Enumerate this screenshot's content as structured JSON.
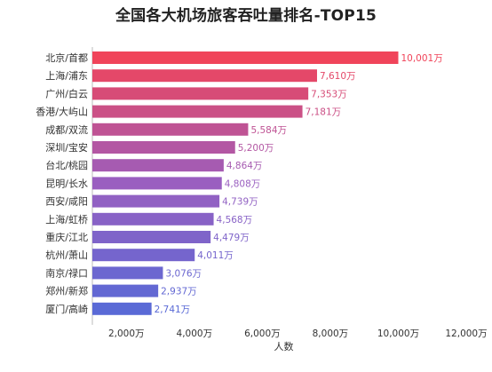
{
  "chart_data": {
    "type": "bar",
    "orientation": "horizontal",
    "title": "全国各大机场旅客吞吐量排名-TOP15",
    "xlabel": "人数",
    "ylabel": "",
    "categories": [
      "北京/首都",
      "上海/浦东",
      "广州/白云",
      "香港/大屿山",
      "成都/双流",
      "深圳/宝安",
      "台北/桃园",
      "昆明/长水",
      "西安/咸阳",
      "上海/虹桥",
      "重庆/江北",
      "杭州/萧山",
      "南京/禄口",
      "郑州/新郑",
      "厦门/高崎"
    ],
    "values": [
      10001,
      7610,
      7353,
      7181,
      5584,
      5200,
      4864,
      4808,
      4739,
      4568,
      4479,
      4011,
      3076,
      2937,
      2741
    ],
    "value_labels": [
      "10,001万",
      "7,610万",
      "7,353万",
      "7,181万",
      "5,584万",
      "5,200万",
      "4,864万",
      "4,808万",
      "4,739万",
      "4,568万",
      "4,479万",
      "4,011万",
      "3,076万",
      "2,937万",
      "2,741万"
    ],
    "xlim": [
      1000,
      12000
    ],
    "ticks": [
      2000,
      4000,
      6000,
      8000,
      10000,
      12000
    ],
    "tick_labels": [
      "2,000万",
      "4,000万",
      "6,000万",
      "8,000万",
      "10,000万",
      "12,000万"
    ],
    "grid": false,
    "legend": "none"
  },
  "colors": {
    "bar_top": "#f0445a",
    "bar_mid": "#9a5fc0",
    "bar_bottom": "#5a6ad6",
    "text": "#333333",
    "axis": "#bbbbbb"
  }
}
